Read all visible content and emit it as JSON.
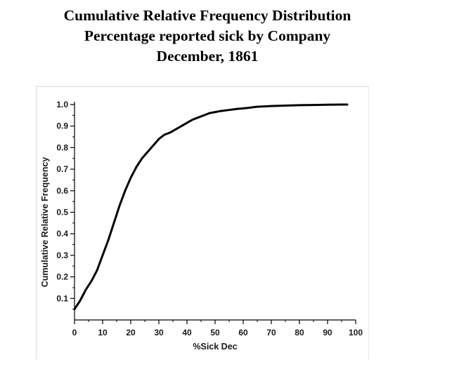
{
  "title": {
    "line1": "Cumulative Relative Frequency Distribution",
    "line2": "Percentage reported sick by Company",
    "line3": "December, 1861"
  },
  "chart_data": {
    "type": "line",
    "title": "Cumulative Relative Frequency Distribution",
    "xlabel": "%Sick Dec",
    "ylabel": "Cumulative Relative Frequency",
    "xlim": [
      0,
      100
    ],
    "ylim": [
      0,
      1.0
    ],
    "x_ticks": [
      0,
      10,
      20,
      30,
      40,
      50,
      60,
      70,
      80,
      90,
      100
    ],
    "y_ticks": [
      0.1,
      0.2,
      0.3,
      0.4,
      0.5,
      0.6,
      0.7,
      0.8,
      0.9,
      1.0
    ],
    "x_tick_labels": [
      "0",
      "10",
      "20",
      "30",
      "40",
      "50",
      "60",
      "70",
      "80",
      "90",
      "100"
    ],
    "y_tick_labels": [
      "0.1",
      "0.2",
      "0.3",
      "0.4",
      "0.5",
      "0.6",
      "0.7",
      "0.8",
      "0.9",
      "1.0"
    ],
    "grid": false,
    "series": [
      {
        "color": "#000000",
        "x": [
          0,
          2,
          4,
          6,
          8,
          10,
          12,
          14,
          16,
          18,
          20,
          22,
          24,
          26,
          28,
          30,
          32,
          34,
          36,
          38,
          40,
          42,
          44,
          46,
          48,
          50,
          52,
          55,
          58,
          60,
          62,
          65,
          70,
          75,
          80,
          85,
          90,
          95,
          97
        ],
        "y": [
          0.05,
          0.09,
          0.14,
          0.18,
          0.23,
          0.3,
          0.37,
          0.45,
          0.53,
          0.6,
          0.66,
          0.71,
          0.75,
          0.78,
          0.81,
          0.84,
          0.86,
          0.87,
          0.885,
          0.9,
          0.915,
          0.93,
          0.94,
          0.95,
          0.96,
          0.965,
          0.97,
          0.975,
          0.98,
          0.982,
          0.985,
          0.99,
          0.993,
          0.995,
          0.997,
          0.998,
          0.999,
          1.0,
          1.0
        ]
      }
    ]
  }
}
